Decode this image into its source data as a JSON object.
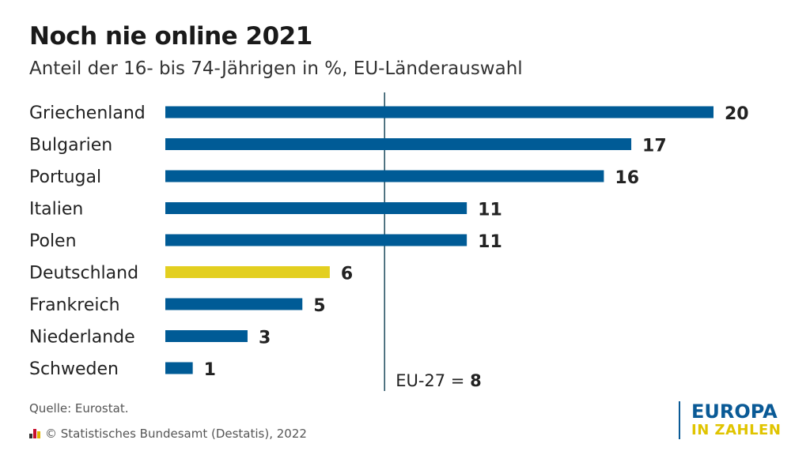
{
  "header": {
    "title": "Noch nie online 2021",
    "subtitle": "Anteil der 16- bis 74-Jährigen in %, EU-Länderauswahl"
  },
  "chart_data": {
    "type": "bar",
    "orientation": "horizontal",
    "title": "Noch nie online 2021",
    "subtitle": "Anteil der 16- bis 74-Jährigen in %, EU-Länderauswahl",
    "categories": [
      "Griechenland",
      "Bulgarien",
      "Portugal",
      "Italien",
      "Polen",
      "Deutschland",
      "Frankreich",
      "Niederlande",
      "Schweden"
    ],
    "values": [
      20,
      17,
      16,
      11,
      11,
      6,
      5,
      3,
      1
    ],
    "highlight": "Deutschland",
    "colors": {
      "bar": "#005b96",
      "highlight": "#e3cf20",
      "reference_line": "#1d4a5c"
    },
    "xlim": [
      0,
      20
    ],
    "grid": false,
    "reference_line": {
      "label": "EU-27 =",
      "value": 8
    }
  },
  "footer": {
    "source": "Quelle: Eurostat.",
    "copyright": "© Statistisches Bundesamt (Destatis), 2022"
  },
  "logo": {
    "line1": "EUROPA",
    "line2": "IN ZAHLEN",
    "colors": {
      "primary": "#0a5a96",
      "accent": "#e0c400"
    }
  }
}
